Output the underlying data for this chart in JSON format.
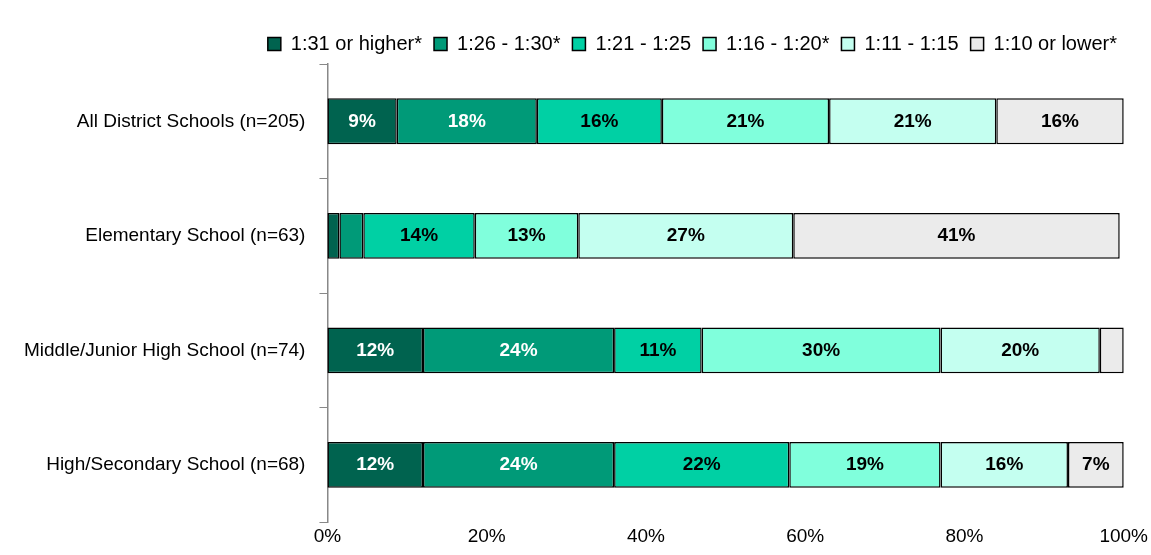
{
  "chart_data": {
    "type": "bar",
    "orientation": "horizontal",
    "stacked": true,
    "legend": "top",
    "grid": false,
    "categories": [
      "All District Schools (n=205)",
      "Elementary School (n=63)",
      "Middle/Junior High School (n=74)",
      "High/Secondary School (n=68)"
    ],
    "xlim": [
      0,
      100
    ],
    "xticks": [
      {
        "value": 0,
        "label": "0%"
      },
      {
        "value": 20,
        "label": "20%"
      },
      {
        "value": 40,
        "label": "40%"
      },
      {
        "value": 60,
        "label": "60%"
      },
      {
        "value": 80,
        "label": "80%"
      },
      {
        "value": 100,
        "label": "100%"
      }
    ],
    "series": [
      {
        "name": "1:31 or higher*",
        "color": "#00634f",
        "values": [
          8.7,
          1.5,
          12,
          12
        ],
        "value_labels": [
          "9%",
          null,
          "12%",
          "12%"
        ]
      },
      {
        "name": "1:26 - 1:30*",
        "color": "#009a78",
        "values": [
          17.6,
          3,
          24,
          24
        ],
        "value_labels": [
          "18%",
          null,
          "24%",
          "24%"
        ]
      },
      {
        "name": "1:21 - 1:25",
        "color": "#00d0a4",
        "values": [
          15.7,
          14,
          11,
          22
        ],
        "value_labels": [
          "16%",
          "14%",
          "11%",
          "22%"
        ]
      },
      {
        "name": "1:16 - 1:20*",
        "color": "#80ffdc",
        "values": [
          21,
          13,
          30,
          19
        ],
        "value_labels": [
          "21%",
          "13%",
          "30%",
          "19%"
        ]
      },
      {
        "name": "1:11 - 1:15",
        "color": "#c4fff0",
        "values": [
          21,
          27,
          20,
          16
        ],
        "value_labels": [
          "21%",
          "27%",
          "20%",
          "16%"
        ]
      },
      {
        "name": "1:10 or lower*",
        "color": "#ebebeb",
        "values": [
          16,
          41,
          3,
          7
        ],
        "value_labels": [
          "16%",
          "41%",
          null,
          "7%"
        ]
      }
    ]
  }
}
